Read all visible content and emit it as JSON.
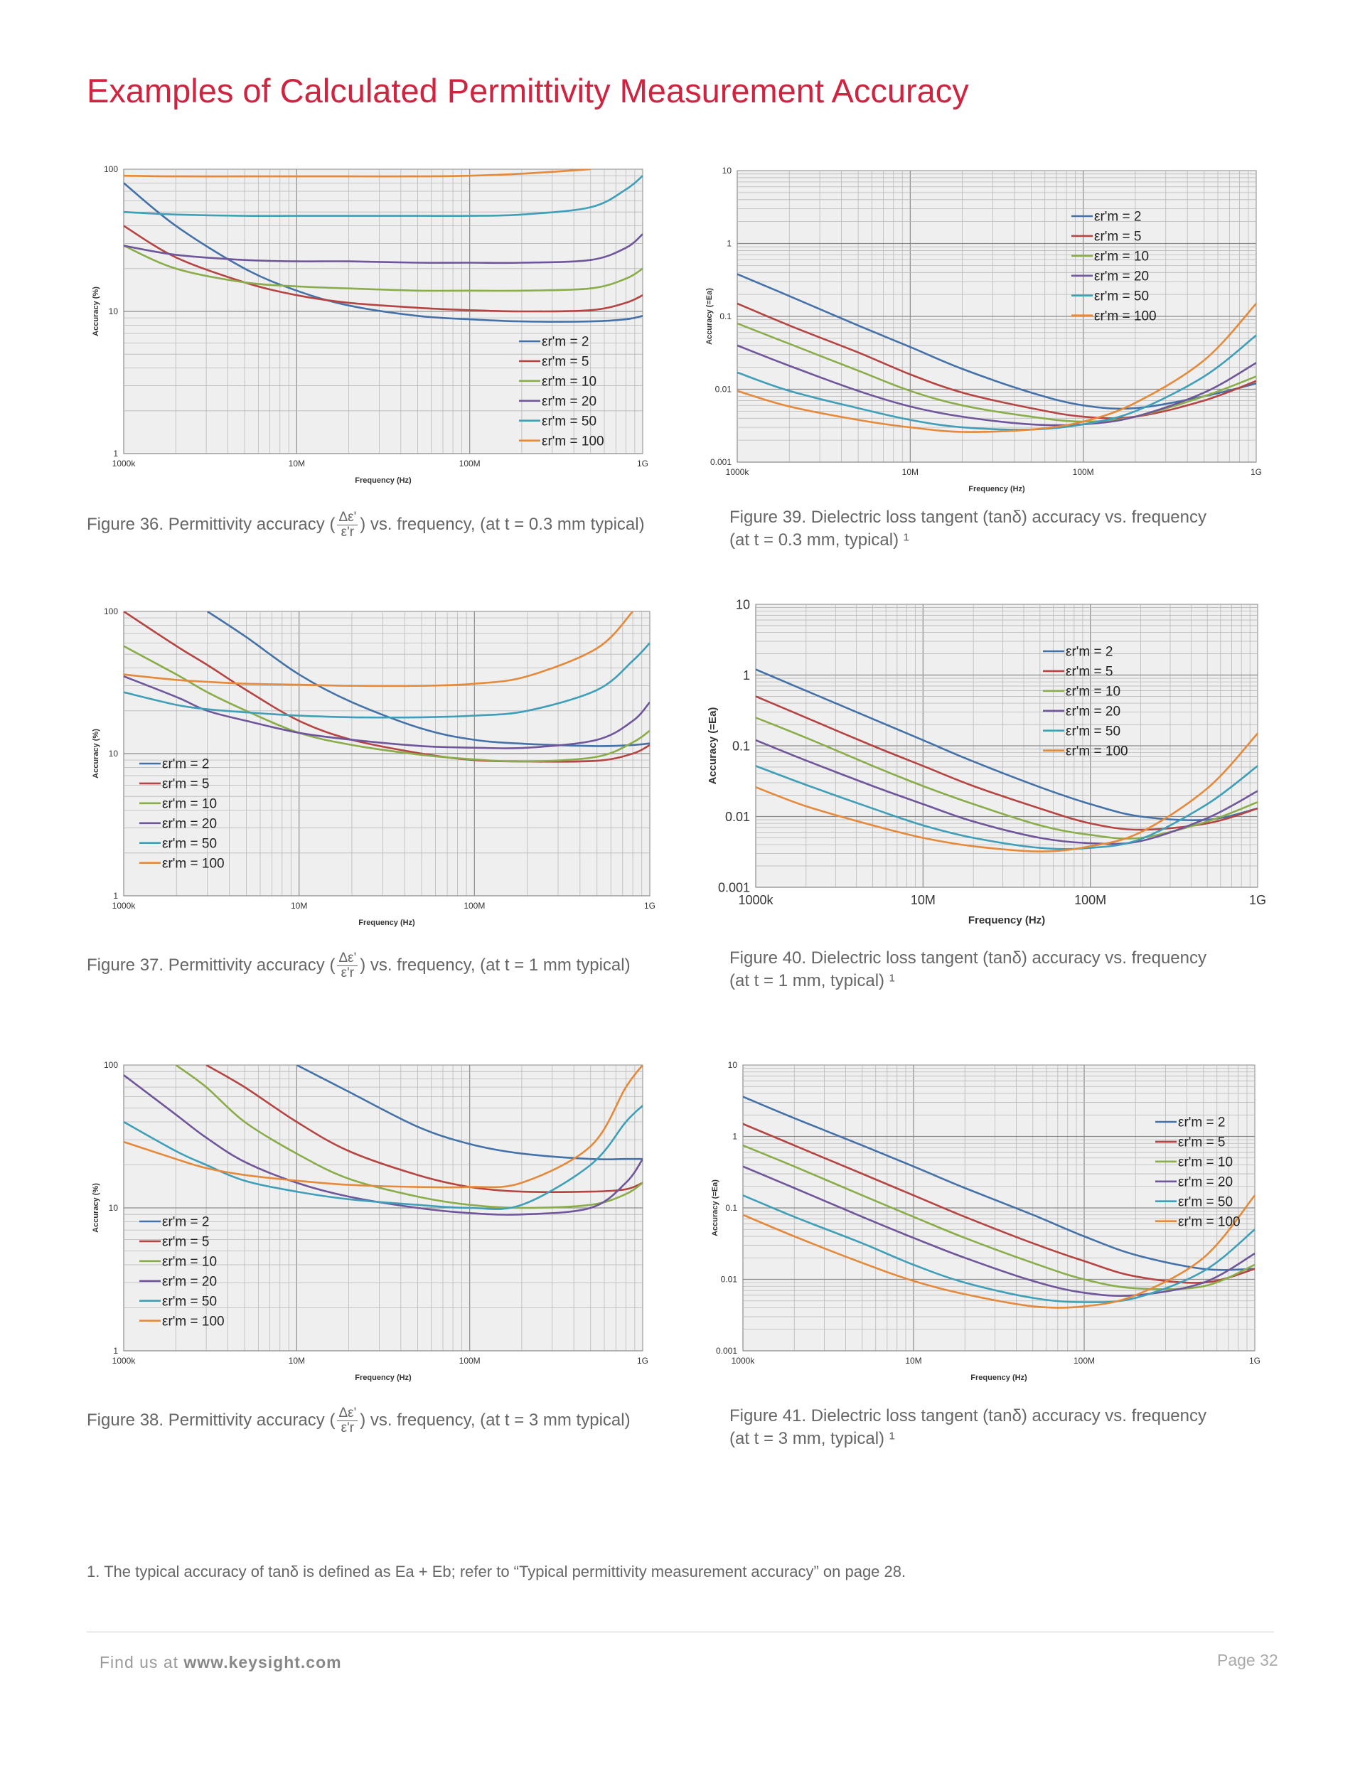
{
  "page": {
    "title": "Examples of Calculated Permittivity Measurement Accuracy",
    "footnote": "1.   The typical accuracy of tanδ is defined as Ea + Eb; refer to “Typical permittivity measurement accuracy” on page 28.",
    "footer": {
      "find_prefix": "Find us at ",
      "url": "www.keysight.com",
      "page_label": "Page 32"
    }
  },
  "captions": {
    "fig36": {
      "prefix": "Figure 36. Permittivity accuracy (",
      "frac_num": "Δε'",
      "frac_den": "ε'r",
      "suffix": ") vs. frequency, (at t = 0.3 mm typical)"
    },
    "fig37": {
      "prefix": "Figure 37. Permittivity accuracy (",
      "frac_num": "Δε'",
      "frac_den": "ε'r",
      "suffix": ") vs. frequency, (at t = 1 mm typical)"
    },
    "fig38": {
      "prefix": "Figure 38. Permittivity accuracy (",
      "frac_num": "Δε'",
      "frac_den": "ε'r",
      "suffix": ") vs. frequency, (at t = 3 mm typical)"
    },
    "fig39": {
      "line1": "Figure 39. Dielectric loss tangent (tanδ) accuracy vs. frequency",
      "line2": "(at t = 0.3 mm, typical) ¹"
    },
    "fig40": {
      "line1": "Figure 40. Dielectric loss tangent (tanδ) accuracy vs. frequency",
      "line2": "(at t = 1 mm, typical) ¹"
    },
    "fig41": {
      "line1": "Figure 41. Dielectric loss tangent (tanδ) accuracy vs. frequency",
      "line2": "(at t = 3 mm, typical) ¹"
    }
  },
  "colors": {
    "er2": "#4472a8",
    "er5": "#b54442",
    "er10": "#8aad4a",
    "er20": "#6f569a",
    "er50": "#3f9fb8",
    "er100": "#e5893a",
    "grid": "#b8b8b8",
    "plot_bg": "#efefef"
  },
  "chart_data": [
    {
      "id": "fig36",
      "type": "line",
      "scale": "log-log",
      "xlabel": "Frequency (Hz)",
      "ylabel": "Accuracy (%)",
      "xlim": [
        1000000,
        1000000000
      ],
      "ylim": [
        1,
        100
      ],
      "x_ticks": [
        {
          "v": 1000000,
          "t": "1000k"
        },
        {
          "v": 10000000,
          "t": "10M"
        },
        {
          "v": 100000000,
          "t": "100M"
        },
        {
          "v": 1000000000,
          "t": "1G"
        }
      ],
      "y_ticks": [
        {
          "v": 1,
          "t": "1"
        },
        {
          "v": 10,
          "t": "10"
        },
        {
          "v": 100,
          "t": "100"
        }
      ],
      "legend_position": "lower-right",
      "x": [
        1000000,
        2000000,
        5000000,
        10000000,
        20000000,
        50000000,
        100000000,
        200000000,
        500000000,
        800000000,
        1000000000
      ],
      "series": [
        {
          "name": "εr'm = 2",
          "color_key": "er2",
          "values": [
            80,
            40,
            20,
            14,
            11,
            9.3,
            8.8,
            8.5,
            8.5,
            8.8,
            9.3
          ]
        },
        {
          "name": "εr'm = 5",
          "color_key": "er5",
          "values": [
            40,
            24,
            16,
            13,
            11.5,
            10.6,
            10.2,
            10,
            10.2,
            11.5,
            13
          ]
        },
        {
          "name": "εr'm = 10",
          "color_key": "er10",
          "values": [
            29,
            20,
            16,
            15,
            14.5,
            14,
            14,
            14,
            14.5,
            17,
            20
          ]
        },
        {
          "name": "εr'm = 20",
          "color_key": "er20",
          "values": [
            29,
            25,
            23,
            22.5,
            22.5,
            22,
            22,
            22,
            23,
            28,
            35
          ]
        },
        {
          "name": "εr'm = 50",
          "color_key": "er50",
          "values": [
            50,
            48,
            47,
            47,
            47,
            47,
            47,
            48,
            54,
            72,
            90
          ]
        },
        {
          "name": "εr'm = 100",
          "color_key": "er100",
          "values": [
            90,
            89,
            89,
            89,
            89,
            89,
            90,
            93,
            100,
            null,
            null
          ]
        }
      ]
    },
    {
      "id": "fig37",
      "type": "line",
      "scale": "log-log",
      "xlabel": "Frequency (Hz)",
      "ylabel": "Accuracy (%)",
      "xlim": [
        1000000,
        1000000000
      ],
      "ylim": [
        1,
        100
      ],
      "x_ticks": [
        {
          "v": 1000000,
          "t": "1000k"
        },
        {
          "v": 10000000,
          "t": "10M"
        },
        {
          "v": 100000000,
          "t": "100M"
        },
        {
          "v": 1000000000,
          "t": "1G"
        }
      ],
      "y_ticks": [
        {
          "v": 1,
          "t": "1"
        },
        {
          "v": 10,
          "t": "10"
        },
        {
          "v": 100,
          "t": "100"
        }
      ],
      "legend_position": "lower-left",
      "x": [
        1000000,
        2000000,
        3000000,
        5000000,
        10000000,
        20000000,
        50000000,
        100000000,
        200000000,
        500000000,
        800000000,
        1000000000
      ],
      "series": [
        {
          "name": "εr'm = 2",
          "color_key": "er2",
          "values": [
            null,
            null,
            100,
            66,
            36,
            23,
            15,
            12.5,
            11.7,
            11.3,
            11.5,
            11.8
          ]
        },
        {
          "name": "εr'm = 5",
          "color_key": "er5",
          "values": [
            100,
            57,
            42,
            28,
            17,
            12.5,
            10,
            9,
            8.8,
            8.9,
            10,
            11.5
          ]
        },
        {
          "name": "εr'm = 10",
          "color_key": "er10",
          "values": [
            57,
            36,
            27,
            20,
            14,
            11.5,
            9.8,
            9.1,
            8.8,
            9.5,
            12,
            14.5
          ]
        },
        {
          "name": "εr'm = 20",
          "color_key": "er20",
          "values": [
            35,
            25,
            20,
            17,
            14,
            12.5,
            11.3,
            11,
            11,
            12.5,
            17,
            23
          ]
        },
        {
          "name": "εr'm = 50",
          "color_key": "er50",
          "values": [
            27,
            22,
            20.5,
            19.5,
            18.5,
            18,
            18,
            18.5,
            20,
            28,
            45,
            60
          ]
        },
        {
          "name": "εr'm = 100",
          "color_key": "er100",
          "values": [
            36,
            33,
            32,
            31,
            30.5,
            30,
            30,
            31,
            35,
            55,
            100,
            null
          ]
        }
      ]
    },
    {
      "id": "fig38",
      "type": "line",
      "scale": "log-log",
      "xlabel": "Frequency (Hz)",
      "ylabel": "Accuracy (%)",
      "xlim": [
        1000000,
        1000000000
      ],
      "ylim": [
        1,
        100
      ],
      "x_ticks": [
        {
          "v": 1000000,
          "t": "1000k"
        },
        {
          "v": 10000000,
          "t": "10M"
        },
        {
          "v": 100000000,
          "t": "100M"
        },
        {
          "v": 1000000000,
          "t": "1G"
        }
      ],
      "y_ticks": [
        {
          "v": 1,
          "t": "1"
        },
        {
          "v": 10,
          "t": "10"
        },
        {
          "v": 100,
          "t": "100"
        }
      ],
      "legend_position": "lower-left",
      "x": [
        1000000,
        2000000,
        3000000,
        5000000,
        10000000,
        20000000,
        50000000,
        100000000,
        200000000,
        500000000,
        800000000,
        1000000000
      ],
      "series": [
        {
          "name": "εr'm = 2",
          "color_key": "er2",
          "values": [
            null,
            null,
            null,
            null,
            100,
            65,
            37,
            28,
            24,
            22,
            22,
            22
          ]
        },
        {
          "name": "εr'm = 5",
          "color_key": "er5",
          "values": [
            null,
            null,
            100,
            70,
            40,
            25,
            17,
            14,
            13,
            13,
            13.5,
            15
          ]
        },
        {
          "name": "εr'm = 10",
          "color_key": "er10",
          "values": [
            null,
            100,
            70,
            40,
            24,
            16,
            12,
            10.5,
            10,
            10.5,
            12.5,
            15
          ]
        },
        {
          "name": "εr'm = 20",
          "color_key": "er20",
          "values": [
            85,
            45,
            31,
            21,
            15,
            12,
            10,
            9.2,
            9,
            10,
            15,
            22
          ]
        },
        {
          "name": "εr'm = 50",
          "color_key": "er50",
          "values": [
            40,
            25,
            20,
            15.5,
            13,
            11.5,
            10.5,
            10,
            10.5,
            20,
            40,
            52
          ]
        },
        {
          "name": "εr'm = 100",
          "color_key": "er100",
          "values": [
            29,
            22,
            19,
            17,
            15.5,
            14.5,
            14,
            14,
            15,
            27,
            70,
            100
          ]
        }
      ]
    },
    {
      "id": "fig39",
      "type": "line",
      "scale": "log-log",
      "xlabel": "Frequency (Hz)",
      "ylabel": "Accuracy (=Ea)",
      "xlim": [
        1000000,
        1000000000
      ],
      "ylim": [
        0.001,
        10
      ],
      "x_ticks": [
        {
          "v": 1000000,
          "t": "1000k"
        },
        {
          "v": 10000000,
          "t": "10M"
        },
        {
          "v": 100000000,
          "t": "100M"
        },
        {
          "v": 1000000000,
          "t": "1G"
        }
      ],
      "y_ticks": [
        {
          "v": 0.001,
          "t": "0.001"
        },
        {
          "v": 0.01,
          "t": "0.01"
        },
        {
          "v": 0.1,
          "t": "0.1"
        },
        {
          "v": 1,
          "t": "1"
        },
        {
          "v": 10,
          "t": "10"
        }
      ],
      "legend_position": "top-right",
      "x": [
        1000000,
        2000000,
        5000000,
        10000000,
        20000000,
        50000000,
        100000000,
        200000000,
        500000000,
        1000000000
      ],
      "series": [
        {
          "name": "εr'm = 2",
          "color_key": "er2",
          "values": [
            0.38,
            0.19,
            0.075,
            0.038,
            0.019,
            0.009,
            0.006,
            0.0055,
            0.008,
            0.012
          ]
        },
        {
          "name": "εr'm = 5",
          "color_key": "er5",
          "values": [
            0.15,
            0.075,
            0.032,
            0.016,
            0.009,
            0.0055,
            0.0042,
            0.0042,
            0.007,
            0.013
          ]
        },
        {
          "name": "εr'm = 10",
          "color_key": "er10",
          "values": [
            0.08,
            0.042,
            0.018,
            0.0095,
            0.006,
            0.0042,
            0.0036,
            0.0042,
            0.008,
            0.015
          ]
        },
        {
          "name": "εr'm = 20",
          "color_key": "er20",
          "values": [
            0.04,
            0.021,
            0.0095,
            0.0058,
            0.0042,
            0.0033,
            0.0033,
            0.0042,
            0.009,
            0.023
          ]
        },
        {
          "name": "εr'm = 50",
          "color_key": "er50",
          "values": [
            0.017,
            0.0095,
            0.0055,
            0.0038,
            0.003,
            0.0028,
            0.0033,
            0.005,
            0.015,
            0.055
          ]
        },
        {
          "name": "εr'm = 100",
          "color_key": "er100",
          "values": [
            0.0095,
            0.0058,
            0.0038,
            0.003,
            0.0026,
            0.0028,
            0.0036,
            0.0065,
            0.025,
            0.15
          ]
        }
      ]
    },
    {
      "id": "fig40",
      "type": "line",
      "scale": "log-log",
      "xlabel": "Frequency (Hz)",
      "ylabel": "Accuracy (=Ea)",
      "xlim": [
        1000000,
        1000000000
      ],
      "ylim": [
        0.001,
        10
      ],
      "x_ticks": [
        {
          "v": 1000000,
          "t": "1000k"
        },
        {
          "v": 10000000,
          "t": "10M"
        },
        {
          "v": 100000000,
          "t": "100M"
        },
        {
          "v": 1000000000,
          "t": "1G"
        }
      ],
      "y_ticks": [
        {
          "v": 0.001,
          "t": "0.001"
        },
        {
          "v": 0.01,
          "t": "0.01"
        },
        {
          "v": 0.1,
          "t": "0.1"
        },
        {
          "v": 1,
          "t": "1"
        },
        {
          "v": 10,
          "t": "10"
        }
      ],
      "legend_position": "top-right",
      "x": [
        1000000,
        2000000,
        5000000,
        10000000,
        20000000,
        50000000,
        100000000,
        200000000,
        500000000,
        1000000000
      ],
      "series": [
        {
          "name": "εr'm = 2",
          "color_key": "er2",
          "values": [
            1.2,
            0.6,
            0.24,
            0.12,
            0.06,
            0.026,
            0.015,
            0.01,
            0.009,
            0.013
          ]
        },
        {
          "name": "εr'm = 5",
          "color_key": "er5",
          "values": [
            0.5,
            0.25,
            0.1,
            0.052,
            0.027,
            0.013,
            0.008,
            0.0065,
            0.008,
            0.013
          ]
        },
        {
          "name": "εr'm = 10",
          "color_key": "er10",
          "values": [
            0.25,
            0.13,
            0.052,
            0.027,
            0.015,
            0.0075,
            0.0055,
            0.005,
            0.0085,
            0.016
          ]
        },
        {
          "name": "εr'm = 20",
          "color_key": "er20",
          "values": [
            0.12,
            0.062,
            0.027,
            0.015,
            0.0085,
            0.005,
            0.0042,
            0.0045,
            0.0095,
            0.023
          ]
        },
        {
          "name": "εr'm = 50",
          "color_key": "er50",
          "values": [
            0.052,
            0.028,
            0.013,
            0.0075,
            0.005,
            0.0036,
            0.0036,
            0.0048,
            0.015,
            0.052
          ]
        },
        {
          "name": "εr'm = 100",
          "color_key": "er100",
          "values": [
            0.026,
            0.014,
            0.0075,
            0.005,
            0.0038,
            0.0032,
            0.0038,
            0.006,
            0.025,
            0.15
          ]
        }
      ]
    },
    {
      "id": "fig41",
      "type": "line",
      "scale": "log-log",
      "xlabel": "Frequency (Hz)",
      "ylabel": "Accuracy (=Ea)",
      "xlim": [
        1000000,
        1000000000
      ],
      "ylim": [
        0.001,
        10
      ],
      "x_ticks": [
        {
          "v": 1000000,
          "t": "1000k"
        },
        {
          "v": 10000000,
          "t": "10M"
        },
        {
          "v": 100000000,
          "t": "100M"
        },
        {
          "v": 1000000000,
          "t": "1G"
        }
      ],
      "y_ticks": [
        {
          "v": 0.001,
          "t": "0.001"
        },
        {
          "v": 0.01,
          "t": "0.01"
        },
        {
          "v": 0.1,
          "t": "0.1"
        },
        {
          "v": 1,
          "t": "1"
        },
        {
          "v": 10,
          "t": "10"
        }
      ],
      "legend_position": "top-right",
      "x": [
        1000000,
        2000000,
        5000000,
        10000000,
        20000000,
        50000000,
        100000000,
        200000000,
        500000000,
        1000000000
      ],
      "series": [
        {
          "name": "εr'm = 2",
          "color_key": "er2",
          "values": [
            3.6,
            1.8,
            0.75,
            0.38,
            0.19,
            0.08,
            0.04,
            0.022,
            0.014,
            0.014
          ]
        },
        {
          "name": "εr'm = 5",
          "color_key": "er5",
          "values": [
            1.5,
            0.75,
            0.3,
            0.15,
            0.075,
            0.032,
            0.018,
            0.011,
            0.009,
            0.014
          ]
        },
        {
          "name": "εr'm = 10",
          "color_key": "er10",
          "values": [
            0.75,
            0.38,
            0.15,
            0.075,
            0.038,
            0.017,
            0.01,
            0.0075,
            0.008,
            0.016
          ]
        },
        {
          "name": "εr'm = 20",
          "color_key": "er20",
          "values": [
            0.38,
            0.19,
            0.075,
            0.038,
            0.02,
            0.0095,
            0.0065,
            0.006,
            0.009,
            0.023
          ]
        },
        {
          "name": "εr'm = 50",
          "color_key": "er50",
          "values": [
            0.15,
            0.075,
            0.032,
            0.016,
            0.009,
            0.0055,
            0.0048,
            0.0055,
            0.013,
            0.05
          ]
        },
        {
          "name": "εr'm = 100",
          "color_key": "er100",
          "values": [
            0.08,
            0.04,
            0.017,
            0.0095,
            0.0062,
            0.0042,
            0.0042,
            0.006,
            0.02,
            0.15
          ]
        }
      ]
    }
  ]
}
